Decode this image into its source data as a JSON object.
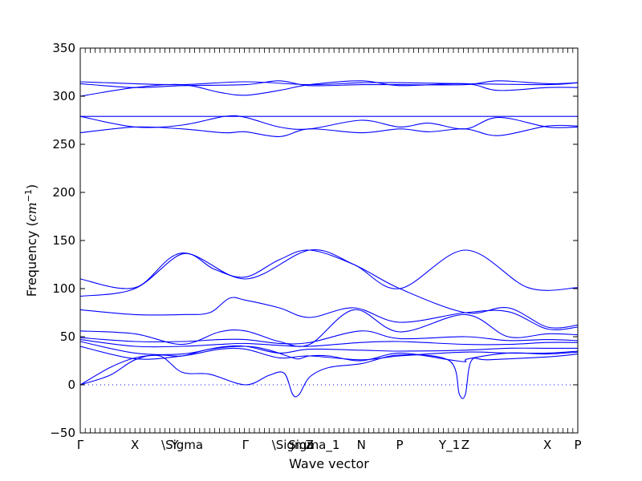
{
  "chart_data": {
    "type": "line",
    "xlabel": "Wave vector",
    "ylabel_text": "Frequency (",
    "ylabel_unit_base": "cm",
    "ylabel_unit_exp": "−1",
    "ylabel_close": ")",
    "ylim": [
      -50,
      350
    ],
    "yticks": [
      -50,
      0,
      50,
      100,
      150,
      200,
      250,
      300,
      350
    ],
    "xlim": [
      0,
      1
    ],
    "xticks": [
      {
        "pos": 0.0,
        "label": "Γ"
      },
      {
        "pos": 0.11,
        "label": "X"
      },
      {
        "pos": 0.19,
        "label": "Y"
      },
      {
        "pos": 0.205,
        "label": "\\Sigma"
      },
      {
        "pos": 0.332,
        "label": "Γ"
      },
      {
        "pos": 0.427,
        "label": "\\Sigma"
      },
      {
        "pos": 0.461,
        "label": "Z"
      },
      {
        "pos": 0.47,
        "label": "Sigma_1"
      },
      {
        "pos": 0.565,
        "label": "N"
      },
      {
        "pos": 0.642,
        "label": "P"
      },
      {
        "pos": 0.742,
        "label": "Y_1"
      },
      {
        "pos": 0.774,
        "label": "Z"
      },
      {
        "pos": 0.939,
        "label": "X"
      },
      {
        "pos": 1.0,
        "label": "P"
      }
    ],
    "zero_line": {
      "y": 0,
      "style": "dotted"
    },
    "line_color": "#0000ff",
    "series": [
      {
        "x": [
          0,
          0.11,
          0.205,
          0.332,
          0.461,
          0.565,
          0.642,
          0.774,
          0.939,
          1.0
        ],
        "y": [
          315,
          313,
          312,
          315,
          312,
          314,
          314,
          313,
          312,
          314
        ]
      },
      {
        "x": [
          0,
          0.11,
          0.205,
          0.332,
          0.4,
          0.461,
          0.565,
          0.642,
          0.774,
          0.84,
          0.939,
          1.0
        ],
        "y": [
          313,
          309,
          311,
          312,
          316,
          311,
          312,
          312,
          312,
          316,
          313,
          314
        ]
      },
      {
        "x": [
          0,
          0.11,
          0.205,
          0.28,
          0.332,
          0.4,
          0.461,
          0.565,
          0.642,
          0.774,
          0.84,
          0.939,
          1.0
        ],
        "y": [
          300,
          309,
          312,
          304,
          301,
          306,
          312,
          316,
          311,
          313,
          306,
          309,
          309
        ]
      },
      {
        "x": [
          0,
          0.11,
          0.205,
          0.332,
          0.461,
          0.565,
          0.642,
          0.774,
          0.939,
          1.0
        ],
        "y": [
          279,
          279,
          279,
          279,
          279,
          279,
          279,
          279,
          279,
          279
        ]
      },
      {
        "x": [
          0,
          0.11,
          0.205,
          0.29,
          0.332,
          0.4,
          0.461,
          0.565,
          0.642,
          0.7,
          0.774,
          0.84,
          0.939,
          1.0
        ],
        "y": [
          279,
          268,
          270,
          279,
          278,
          268,
          266,
          275,
          268,
          272,
          266,
          278,
          268,
          268
        ]
      },
      {
        "x": [
          0,
          0.11,
          0.205,
          0.29,
          0.332,
          0.4,
          0.461,
          0.565,
          0.642,
          0.7,
          0.774,
          0.84,
          0.939,
          1.0
        ],
        "y": [
          262,
          268,
          266,
          262,
          263,
          258,
          266,
          262,
          266,
          263,
          266,
          259,
          269,
          269
        ]
      },
      {
        "x": [
          0,
          0.11,
          0.205,
          0.332,
          0.461,
          0.55,
          0.642,
          0.774,
          0.9,
          1.0
        ],
        "y": [
          110,
          101,
          137,
          110,
          140,
          125,
          100,
          140,
          101,
          101
        ]
      },
      {
        "x": [
          0,
          0.11,
          0.205,
          0.27,
          0.332,
          0.4,
          0.461,
          0.55,
          0.642,
          0.774,
          0.86,
          0.939,
          1.0
        ],
        "y": [
          92,
          100,
          136,
          120,
          112,
          130,
          140,
          125,
          100,
          75,
          80,
          60,
          62
        ]
      },
      {
        "x": [
          0,
          0.11,
          0.205,
          0.26,
          0.3,
          0.332,
          0.4,
          0.461,
          0.55,
          0.642,
          0.774,
          0.86,
          0.939,
          1.0
        ],
        "y": [
          78,
          73,
          73,
          75,
          90,
          88,
          80,
          70,
          80,
          65,
          75,
          76,
          58,
          60
        ]
      },
      {
        "x": [
          0,
          0.11,
          0.205,
          0.28,
          0.332,
          0.4,
          0.461,
          0.55,
          0.642,
          0.774,
          0.86,
          0.939,
          1.0
        ],
        "y": [
          56,
          53,
          42,
          55,
          56,
          45,
          42,
          78,
          55,
          73,
          50,
          53,
          52
        ]
      },
      {
        "x": [
          0,
          0.11,
          0.205,
          0.28,
          0.332,
          0.4,
          0.461,
          0.565,
          0.642,
          0.774,
          0.86,
          0.939,
          1.0
        ],
        "y": [
          49,
          45,
          45,
          47,
          47,
          43,
          44,
          56,
          48,
          50,
          46,
          47,
          46
        ]
      },
      {
        "x": [
          0,
          0.11,
          0.205,
          0.28,
          0.332,
          0.4,
          0.461,
          0.565,
          0.642,
          0.774,
          0.86,
          0.939,
          1.0
        ],
        "y": [
          47,
          40,
          40,
          42,
          43,
          41,
          40,
          44,
          45,
          42,
          42,
          44,
          44
        ]
      },
      {
        "x": [
          0,
          0.11,
          0.205,
          0.28,
          0.332,
          0.4,
          0.461,
          0.565,
          0.642,
          0.774,
          0.86,
          0.939,
          1.0
        ],
        "y": [
          45,
          33,
          32,
          39,
          40,
          33,
          37,
          36,
          35,
          36,
          38,
          38,
          38
        ]
      },
      {
        "x": [
          0,
          0.11,
          0.205,
          0.28,
          0.332,
          0.4,
          0.461,
          0.565,
          0.642,
          0.774,
          0.86,
          0.939,
          1.0
        ],
        "y": [
          40,
          27,
          30,
          37,
          37,
          28,
          30,
          26,
          30,
          34,
          33,
          33,
          35
        ]
      },
      {
        "x": [
          0,
          0.06,
          0.11,
          0.16,
          0.205,
          0.26,
          0.332,
          0.38,
          0.427,
          0.44,
          0.461,
          0.5,
          0.565,
          0.642,
          0.742,
          0.774,
          0.78,
          0.86,
          0.939,
          1.0
        ],
        "y": [
          0,
          18,
          28,
          31,
          30,
          37,
          40,
          36,
          28,
          27,
          30,
          30,
          25,
          33,
          26,
          24,
          27,
          33,
          32,
          34
        ]
      },
      {
        "x": [
          0,
          0.06,
          0.11,
          0.16,
          0.205,
          0.26,
          0.332,
          0.38,
          0.41,
          0.427,
          0.44,
          0.461,
          0.5,
          0.565,
          0.642,
          0.742,
          0.762,
          0.774,
          0.786,
          0.82,
          0.939,
          1.0
        ],
        "y": [
          0,
          10,
          26,
          30,
          13,
          11,
          0,
          10,
          12,
          -10,
          -10,
          8,
          18,
          22,
          31,
          25,
          -10,
          -10,
          25,
          26,
          29,
          32
        ]
      }
    ]
  }
}
